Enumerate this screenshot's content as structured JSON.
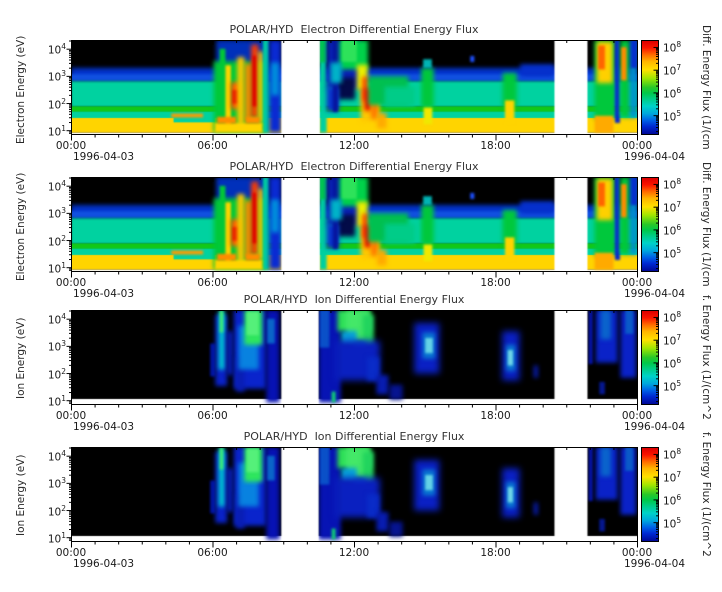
{
  "chart_data": {
    "type": "heatmap",
    "panels": [
      {
        "title": "POLAR/HYD  Electron Differential Energy Flux",
        "y_label": "Electron Energy (eV)",
        "colorbar_label": "Diff. Energy Flux (1/(cm",
        "spectrogram": "electron"
      },
      {
        "title": "POLAR/HYD  Electron Differential Energy Flux",
        "y_label": "Electron Energy (eV)",
        "colorbar_label": "Diff. Energy Flux (1/(cm",
        "spectrogram": "electron"
      },
      {
        "title": "POLAR/HYD  Ion Differential Energy Flux",
        "y_label": "Ion Energy (eV)",
        "colorbar_label": "f. Energy Flux (1/(cm^2",
        "spectrogram": "ion"
      },
      {
        "title": "POLAR/HYD  Ion Differential Energy Flux",
        "y_label": "Ion Energy (eV)",
        "colorbar_label": "f. Energy Flux (1/(cm^2",
        "spectrogram": "ion"
      }
    ],
    "x_axis": {
      "range_hours": [
        0,
        24
      ],
      "tick_hours": [
        0,
        6,
        12,
        18,
        24
      ],
      "tick_labels": [
        "00:00",
        "06:00",
        "12:00",
        "18:00",
        "00:00"
      ],
      "minor_step_hours": 1,
      "start_date": "1996-04-03",
      "end_date": "1996-04-04"
    },
    "y_axis": {
      "log_range": [
        0.86,
        4.32
      ],
      "tick_decades": [
        4,
        3,
        2,
        1
      ],
      "tick_labels": [
        {
          "base": "10",
          "exp": "4"
        },
        {
          "base": "10",
          "exp": "3"
        },
        {
          "base": "10",
          "exp": "2"
        },
        {
          "base": "10",
          "exp": "1"
        }
      ]
    },
    "colorbar": {
      "log_range": [
        4.17,
        8.3
      ],
      "tick_decades": [
        8,
        7,
        6,
        5
      ],
      "tick_labels": [
        {
          "base": "10",
          "exp": "8"
        },
        {
          "base": "10",
          "exp": "7"
        },
        {
          "base": "10",
          "exp": "6"
        },
        {
          "base": "10",
          "exp": "5"
        }
      ],
      "gradient": [
        [
          0,
          "#dc0000"
        ],
        [
          0.074,
          "#fa1400"
        ],
        [
          0.15,
          "#ff6e00"
        ],
        [
          0.22,
          "#ffb400"
        ],
        [
          0.31,
          "#ffe000"
        ],
        [
          0.4,
          "#a0e600"
        ],
        [
          0.5,
          "#28c828"
        ],
        [
          0.56,
          "#00c84a"
        ],
        [
          0.63,
          "#00cd8c"
        ],
        [
          0.7,
          "#00d2c8"
        ],
        [
          0.78,
          "#00a8dc"
        ],
        [
          0.85,
          "#0064e6"
        ],
        [
          0.92,
          "#0028d2"
        ],
        [
          1,
          "#000896"
        ]
      ]
    },
    "spectrograms": {
      "electron": {
        "bg": "#000000",
        "bg_e": [
          0.95,
          4.32
        ],
        "gaps_hours": [
          [
            8.92,
            10.55
          ],
          [
            20.5,
            21.9
          ]
        ],
        "layers": [
          [
            0,
            24,
            2.8,
            3.3,
            "#0233cc",
            2
          ],
          [
            0,
            24,
            2.84,
            3.08,
            "#1150e0",
            1
          ],
          [
            0,
            24,
            1.88,
            2.82,
            "#00d2a0",
            1
          ],
          [
            0,
            24,
            1.7,
            1.9,
            "#12c818",
            0
          ],
          [
            0,
            24,
            1.46,
            1.71,
            "#00d2a0",
            0
          ],
          [
            0,
            24,
            0.95,
            1.48,
            "#ffd400",
            0
          ],
          [
            4.35,
            6.1,
            1.32,
            1.64,
            "#00d2a0",
            0
          ],
          [
            4.25,
            5.6,
            1.5,
            1.64,
            "#ff9a00",
            1
          ],
          [
            6.15,
            8.35,
            3.35,
            4.32,
            "#0030bb",
            2
          ],
          [
            6.05,
            8.35,
            0.95,
            3.55,
            "#00c838",
            2
          ],
          [
            6.3,
            6.55,
            1.5,
            4.0,
            "#00c838",
            1
          ],
          [
            6.55,
            6.78,
            1.2,
            3.4,
            "#ffd400",
            1
          ],
          [
            6.78,
            7.18,
            1.8,
            2.78,
            "#ff5a00",
            2
          ],
          [
            6.85,
            7.1,
            2.0,
            2.5,
            "#e81600",
            1
          ],
          [
            7.05,
            7.35,
            1.2,
            3.7,
            "#ffc800",
            2
          ],
          [
            7.38,
            7.66,
            1.4,
            3.45,
            "#ff8c00",
            2
          ],
          [
            7.64,
            7.94,
            1.5,
            4.15,
            "#ff3c00",
            2
          ],
          [
            7.7,
            7.88,
            1.9,
            3.75,
            "#dc0000",
            1
          ],
          [
            7.94,
            8.16,
            1.3,
            3.9,
            "#ffc800",
            2
          ],
          [
            8.14,
            8.4,
            0.95,
            4.32,
            "#00cfa0",
            1
          ],
          [
            8.4,
            8.92,
            0.95,
            4.32,
            "#0a2ad2",
            2
          ],
          [
            8.48,
            8.82,
            2.3,
            3.5,
            "#0090dc",
            2
          ],
          [
            6.1,
            8.12,
            0.95,
            1.3,
            "#ffd400",
            1
          ],
          [
            6.2,
            7.0,
            1.28,
            1.52,
            "#ff8c00",
            1
          ],
          [
            7.4,
            8.0,
            1.28,
            1.52,
            "#ff8c00",
            1
          ],
          [
            10.55,
            10.84,
            0.95,
            4.32,
            "#00cfa0",
            1
          ],
          [
            10.55,
            10.84,
            3.5,
            4.32,
            "#00c850",
            1
          ],
          [
            10.84,
            12.3,
            2.55,
            4.32,
            "#0a20b4",
            2
          ],
          [
            11.28,
            12.05,
            2.15,
            2.95,
            "#030b48",
            2
          ],
          [
            10.84,
            11.36,
            1.72,
            2.6,
            "#0a32cc",
            2
          ],
          [
            11.1,
            11.32,
            1.7,
            4.32,
            "#0616a0",
            1
          ],
          [
            11.38,
            12.6,
            3.25,
            4.32,
            "#00d24a",
            2
          ],
          [
            11.48,
            12.12,
            3.52,
            4.32,
            "#2ee25a",
            1
          ],
          [
            11.0,
            11.48,
            2.75,
            3.5,
            "#00b4c8",
            2
          ],
          [
            12.12,
            12.58,
            2.5,
            3.42,
            "#eaf000",
            2
          ],
          [
            12.28,
            13.08,
            1.35,
            2.5,
            "#ffc800",
            2
          ],
          [
            12.34,
            12.64,
            2.1,
            2.98,
            "#ff5000",
            2
          ],
          [
            12.44,
            12.74,
            1.75,
            2.56,
            "#e80e00",
            2
          ],
          [
            12.72,
            13.02,
            1.45,
            2.06,
            "#ff7800",
            2
          ],
          [
            12.98,
            13.38,
            1.1,
            1.66,
            "#ffaa00",
            2
          ],
          [
            12.6,
            14.3,
            1.95,
            3.0,
            "#00c050",
            2
          ],
          [
            13.3,
            14.6,
            1.9,
            2.62,
            "#00cc88",
            2
          ],
          [
            14.85,
            15.38,
            1.85,
            3.3,
            "#00c83c",
            2
          ],
          [
            14.93,
            15.3,
            3.3,
            3.62,
            "#00b4b4",
            1
          ],
          [
            14.95,
            15.32,
            1.25,
            1.86,
            "#f0e800",
            1
          ],
          [
            16.93,
            17.1,
            3.52,
            3.74,
            "#1e50ff",
            1
          ],
          [
            18.3,
            18.9,
            1.85,
            3.12,
            "#00c83c",
            2
          ],
          [
            18.4,
            18.8,
            1.28,
            2.12,
            "#ffd400",
            1
          ],
          [
            19.05,
            20.5,
            2.98,
            3.44,
            "#0530cc",
            2
          ],
          [
            22.2,
            23.12,
            1.45,
            4.32,
            "#00c83c",
            2
          ],
          [
            22.3,
            22.97,
            2.75,
            4.26,
            "#ffd000",
            2
          ],
          [
            22.35,
            22.64,
            3.25,
            4.12,
            "#ff6400",
            1
          ],
          [
            23.06,
            23.28,
            1.3,
            4.32,
            "#0a28d2",
            1
          ],
          [
            23.28,
            23.7,
            1.5,
            4.32,
            "#00c83c",
            2
          ],
          [
            23.33,
            23.56,
            2.85,
            4.06,
            "#ff8c00",
            1
          ],
          [
            23.7,
            24,
            1.5,
            4.32,
            "#0090cc",
            2
          ],
          [
            23.74,
            24,
            3.3,
            4.32,
            "#0530cc",
            1
          ],
          [
            22.2,
            23.0,
            0.95,
            1.56,
            "#ffaa00",
            1
          ]
        ]
      },
      "ion": {
        "bg": "#000000",
        "bg_e": [
          1.08,
          4.32
        ],
        "gaps_hours": [
          [
            8.92,
            10.5
          ],
          [
            20.5,
            21.9
          ]
        ],
        "layers": [
          [
            5.9,
            6.12,
            1.9,
            3.1,
            "#0014a0",
            1
          ],
          [
            6.12,
            6.62,
            1.55,
            4.15,
            "#0a22c8",
            2
          ],
          [
            6.26,
            6.52,
            2.15,
            4.3,
            "#00c8d2",
            2
          ],
          [
            6.3,
            6.46,
            3.5,
            4.3,
            "#3ce87a",
            1
          ],
          [
            6.62,
            6.86,
            1.95,
            3.55,
            "#0820c0",
            2
          ],
          [
            6.9,
            8.28,
            1.45,
            4.32,
            "#0a24cc",
            2
          ],
          [
            7.0,
            7.36,
            1.35,
            2.6,
            "#0a1eb4",
            2
          ],
          [
            7.1,
            7.96,
            2.15,
            3.75,
            "#0882e0",
            2
          ],
          [
            7.35,
            8.12,
            3.05,
            4.32,
            "#2ee65e",
            2
          ],
          [
            7.45,
            7.96,
            3.4,
            4.26,
            "#55f07a",
            1
          ],
          [
            8.28,
            8.84,
            0.95,
            4.32,
            "#0712b4",
            2
          ],
          [
            8.32,
            8.64,
            3.1,
            4.0,
            "#0a64c8",
            1
          ],
          [
            10.5,
            11.44,
            0.95,
            4.32,
            "#0714b4",
            2
          ],
          [
            10.55,
            10.96,
            2.95,
            4.32,
            "#0a50c8",
            1
          ],
          [
            11.3,
            12.72,
            3.55,
            4.32,
            "#2ee05a",
            2
          ],
          [
            11.65,
            12.62,
            3.15,
            4.3,
            "#44e868",
            2
          ],
          [
            12.36,
            12.84,
            2.95,
            4.15,
            "#22d45e",
            2
          ],
          [
            11.45,
            12.12,
            3.0,
            3.56,
            "#08a0d8",
            2
          ],
          [
            11.95,
            12.52,
            2.6,
            3.2,
            "#0890d0",
            2
          ],
          [
            11.2,
            13.1,
            1.75,
            3.2,
            "#0a20c0",
            3
          ],
          [
            12.55,
            13.06,
            1.75,
            2.6,
            "#0a2cc8",
            2
          ],
          [
            12.95,
            13.46,
            1.25,
            1.95,
            "#081cb0",
            2
          ],
          [
            11.05,
            11.22,
            0.95,
            1.35,
            "#12c878",
            1
          ],
          [
            13.5,
            14.06,
            1.05,
            1.6,
            "#061490",
            2
          ],
          [
            14.55,
            15.62,
            2.0,
            3.85,
            "#0a20c4",
            3
          ],
          [
            14.9,
            15.44,
            2.55,
            3.5,
            "#0a78d2",
            2
          ],
          [
            15.02,
            15.34,
            2.75,
            3.3,
            "#64d2e6",
            1
          ],
          [
            18.28,
            19.02,
            1.75,
            3.55,
            "#0a20c4",
            3
          ],
          [
            18.45,
            18.84,
            2.1,
            3.05,
            "#0a78d2",
            2
          ],
          [
            18.52,
            18.74,
            2.3,
            2.86,
            "#6ed6e8",
            1
          ],
          [
            19.62,
            19.8,
            1.85,
            2.3,
            "#081cb0",
            2
          ],
          [
            21.95,
            22.12,
            2.35,
            4.32,
            "#0714ac",
            1
          ],
          [
            22.25,
            23.18,
            2.4,
            4.32,
            "#0a22c8",
            2
          ],
          [
            22.45,
            22.9,
            3.25,
            4.32,
            "#0a64cc",
            2
          ],
          [
            22.4,
            22.64,
            1.25,
            1.7,
            "#061890",
            1
          ],
          [
            23.3,
            23.96,
            1.85,
            4.32,
            "#0a22c8",
            2
          ],
          [
            23.5,
            23.84,
            3.45,
            4.32,
            "#0a5ac8",
            1
          ]
        ]
      }
    }
  }
}
